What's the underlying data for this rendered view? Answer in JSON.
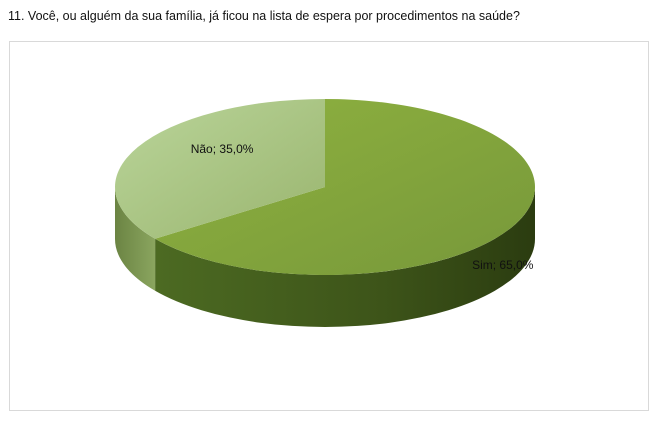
{
  "question": {
    "title": "11. Você, ou alguém da sua família, já ficou na lista de espera por procedimentos na saúde?"
  },
  "chart_data": {
    "type": "pie",
    "style": "3d",
    "title": "",
    "slices": [
      {
        "label": "Sim",
        "value": 65.0,
        "display": "Sim; 65,0%",
        "color": "#7f9f35"
      },
      {
        "label": "Não",
        "value": 35.0,
        "display": "Não; 35,0%",
        "color": "#a8c47f"
      }
    ],
    "legend": "none"
  }
}
